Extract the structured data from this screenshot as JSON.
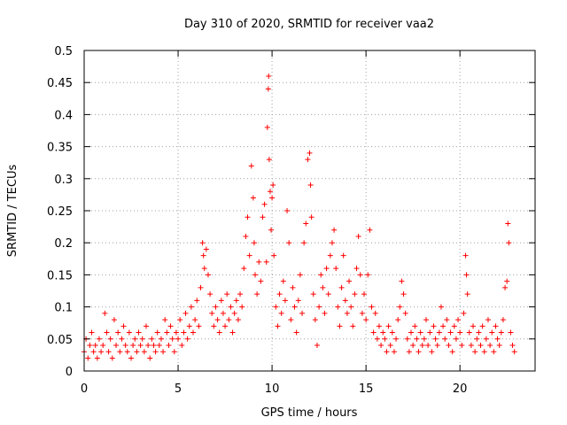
{
  "chart_data": {
    "type": "scatter",
    "title": "Day 310 of 2020, SRMTID for receiver vaa2",
    "xlabel": "GPS time / hours",
    "ylabel": "SRMTID / TECUs",
    "xlim": [
      0,
      24
    ],
    "ylim": [
      0,
      0.5
    ],
    "grid": true,
    "marker": "+",
    "color": "#ff0000",
    "x_ticks": [
      0,
      5,
      10,
      15,
      20
    ],
    "x_tick_labels": [
      "0",
      "5",
      "10",
      "15",
      "20"
    ],
    "y_ticks": [
      0,
      0.05,
      0.1,
      0.15,
      0.2,
      0.25,
      0.3,
      0.35,
      0.4,
      0.45,
      0.5
    ],
    "y_tick_labels": [
      "0",
      "0.05",
      "0.1",
      "0.15",
      "0.2",
      "0.25",
      "0.3",
      "0.35",
      "0.4",
      "0.45",
      "0.5"
    ],
    "series": [
      {
        "name": "SRMTID",
        "points": [
          [
            0.0,
            0.03
          ],
          [
            0.1,
            0.05
          ],
          [
            0.2,
            0.02
          ],
          [
            0.3,
            0.04
          ],
          [
            0.4,
            0.06
          ],
          [
            0.5,
            0.03
          ],
          [
            0.6,
            0.04
          ],
          [
            0.7,
            0.02
          ],
          [
            0.8,
            0.05
          ],
          [
            0.9,
            0.03
          ],
          [
            1.0,
            0.04
          ],
          [
            1.1,
            0.09
          ],
          [
            1.2,
            0.06
          ],
          [
            1.3,
            0.03
          ],
          [
            1.4,
            0.05
          ],
          [
            1.5,
            0.02
          ],
          [
            1.6,
            0.08
          ],
          [
            1.7,
            0.04
          ],
          [
            1.8,
            0.06
          ],
          [
            1.9,
            0.03
          ],
          [
            2.0,
            0.05
          ],
          [
            2.1,
            0.07
          ],
          [
            2.2,
            0.04
          ],
          [
            2.3,
            0.03
          ],
          [
            2.4,
            0.06
          ],
          [
            2.5,
            0.02
          ],
          [
            2.6,
            0.04
          ],
          [
            2.7,
            0.05
          ],
          [
            2.8,
            0.03
          ],
          [
            2.9,
            0.06
          ],
          [
            3.0,
            0.04
          ],
          [
            3.1,
            0.05
          ],
          [
            3.2,
            0.03
          ],
          [
            3.3,
            0.07
          ],
          [
            3.4,
            0.04
          ],
          [
            3.5,
            0.02
          ],
          [
            3.6,
            0.05
          ],
          [
            3.7,
            0.04
          ],
          [
            3.8,
            0.03
          ],
          [
            3.9,
            0.06
          ],
          [
            4.0,
            0.04
          ],
          [
            4.1,
            0.05
          ],
          [
            4.2,
            0.03
          ],
          [
            4.3,
            0.08
          ],
          [
            4.4,
            0.06
          ],
          [
            4.5,
            0.04
          ],
          [
            4.6,
            0.07
          ],
          [
            4.7,
            0.05
          ],
          [
            4.8,
            0.03
          ],
          [
            4.9,
            0.06
          ],
          [
            5.0,
            0.05
          ],
          [
            5.1,
            0.08
          ],
          [
            5.2,
            0.04
          ],
          [
            5.3,
            0.06
          ],
          [
            5.4,
            0.09
          ],
          [
            5.5,
            0.05
          ],
          [
            5.6,
            0.07
          ],
          [
            5.7,
            0.1
          ],
          [
            5.8,
            0.06
          ],
          [
            5.9,
            0.08
          ],
          [
            6.0,
            0.11
          ],
          [
            6.1,
            0.07
          ],
          [
            6.2,
            0.13
          ],
          [
            6.3,
            0.2
          ],
          [
            6.35,
            0.18
          ],
          [
            6.4,
            0.16
          ],
          [
            6.5,
            0.19
          ],
          [
            6.6,
            0.15
          ],
          [
            6.7,
            0.12
          ],
          [
            6.8,
            0.09
          ],
          [
            6.9,
            0.07
          ],
          [
            7.0,
            0.1
          ],
          [
            7.1,
            0.08
          ],
          [
            7.2,
            0.06
          ],
          [
            7.3,
            0.11
          ],
          [
            7.4,
            0.09
          ],
          [
            7.5,
            0.07
          ],
          [
            7.6,
            0.12
          ],
          [
            7.7,
            0.08
          ],
          [
            7.8,
            0.1
          ],
          [
            7.9,
            0.06
          ],
          [
            8.0,
            0.09
          ],
          [
            8.1,
            0.11
          ],
          [
            8.2,
            0.08
          ],
          [
            8.3,
            0.12
          ],
          [
            8.4,
            0.1
          ],
          [
            8.5,
            0.16
          ],
          [
            8.6,
            0.21
          ],
          [
            8.7,
            0.24
          ],
          [
            8.8,
            0.18
          ],
          [
            8.9,
            0.32
          ],
          [
            9.0,
            0.27
          ],
          [
            9.05,
            0.2
          ],
          [
            9.1,
            0.15
          ],
          [
            9.2,
            0.12
          ],
          [
            9.3,
            0.17
          ],
          [
            9.4,
            0.14
          ],
          [
            9.5,
            0.24
          ],
          [
            9.6,
            0.26
          ],
          [
            9.7,
            0.17
          ],
          [
            9.75,
            0.38
          ],
          [
            9.8,
            0.44
          ],
          [
            9.82,
            0.46
          ],
          [
            9.85,
            0.33
          ],
          [
            9.9,
            0.28
          ],
          [
            9.95,
            0.22
          ],
          [
            10.0,
            0.27
          ],
          [
            10.05,
            0.29
          ],
          [
            10.1,
            0.18
          ],
          [
            10.2,
            0.1
          ],
          [
            10.3,
            0.07
          ],
          [
            10.4,
            0.12
          ],
          [
            10.5,
            0.09
          ],
          [
            10.6,
            0.14
          ],
          [
            10.7,
            0.11
          ],
          [
            10.8,
            0.25
          ],
          [
            10.9,
            0.2
          ],
          [
            11.0,
            0.08
          ],
          [
            11.1,
            0.13
          ],
          [
            11.2,
            0.1
          ],
          [
            11.3,
            0.06
          ],
          [
            11.4,
            0.11
          ],
          [
            11.5,
            0.15
          ],
          [
            11.6,
            0.09
          ],
          [
            11.7,
            0.2
          ],
          [
            11.8,
            0.23
          ],
          [
            11.9,
            0.33
          ],
          [
            12.0,
            0.34
          ],
          [
            12.05,
            0.29
          ],
          [
            12.1,
            0.24
          ],
          [
            12.2,
            0.12
          ],
          [
            12.3,
            0.08
          ],
          [
            12.4,
            0.04
          ],
          [
            12.5,
            0.1
          ],
          [
            12.6,
            0.15
          ],
          [
            12.7,
            0.13
          ],
          [
            12.8,
            0.09
          ],
          [
            12.9,
            0.16
          ],
          [
            13.0,
            0.12
          ],
          [
            13.1,
            0.18
          ],
          [
            13.2,
            0.2
          ],
          [
            13.3,
            0.22
          ],
          [
            13.4,
            0.16
          ],
          [
            13.5,
            0.1
          ],
          [
            13.6,
            0.07
          ],
          [
            13.7,
            0.13
          ],
          [
            13.8,
            0.18
          ],
          [
            13.9,
            0.11
          ],
          [
            14.0,
            0.09
          ],
          [
            14.1,
            0.14
          ],
          [
            14.2,
            0.1
          ],
          [
            14.3,
            0.07
          ],
          [
            14.4,
            0.12
          ],
          [
            14.5,
            0.16
          ],
          [
            14.6,
            0.21
          ],
          [
            14.7,
            0.15
          ],
          [
            14.8,
            0.09
          ],
          [
            14.9,
            0.12
          ],
          [
            15.0,
            0.08
          ],
          [
            15.1,
            0.15
          ],
          [
            15.2,
            0.22
          ],
          [
            15.3,
            0.1
          ],
          [
            15.4,
            0.06
          ],
          [
            15.5,
            0.09
          ],
          [
            15.6,
            0.05
          ],
          [
            15.7,
            0.07
          ],
          [
            15.8,
            0.04
          ],
          [
            15.9,
            0.06
          ],
          [
            16.0,
            0.05
          ],
          [
            16.1,
            0.03
          ],
          [
            16.2,
            0.07
          ],
          [
            16.3,
            0.04
          ],
          [
            16.4,
            0.06
          ],
          [
            16.5,
            0.03
          ],
          [
            16.6,
            0.05
          ],
          [
            16.7,
            0.08
          ],
          [
            16.8,
            0.1
          ],
          [
            16.9,
            0.14
          ],
          [
            17.0,
            0.12
          ],
          [
            17.1,
            0.09
          ],
          [
            17.2,
            0.05
          ],
          [
            17.3,
            0.03
          ],
          [
            17.4,
            0.06
          ],
          [
            17.5,
            0.04
          ],
          [
            17.6,
            0.07
          ],
          [
            17.7,
            0.05
          ],
          [
            17.8,
            0.03
          ],
          [
            17.9,
            0.06
          ],
          [
            18.0,
            0.04
          ],
          [
            18.1,
            0.05
          ],
          [
            18.2,
            0.08
          ],
          [
            18.3,
            0.04
          ],
          [
            18.4,
            0.06
          ],
          [
            18.5,
            0.03
          ],
          [
            18.6,
            0.07
          ],
          [
            18.7,
            0.05
          ],
          [
            18.8,
            0.04
          ],
          [
            18.9,
            0.06
          ],
          [
            19.0,
            0.1
          ],
          [
            19.1,
            0.07
          ],
          [
            19.2,
            0.05
          ],
          [
            19.3,
            0.08
          ],
          [
            19.4,
            0.04
          ],
          [
            19.5,
            0.06
          ],
          [
            19.6,
            0.03
          ],
          [
            19.7,
            0.07
          ],
          [
            19.8,
            0.05
          ],
          [
            19.9,
            0.08
          ],
          [
            20.0,
            0.06
          ],
          [
            20.1,
            0.04
          ],
          [
            20.2,
            0.09
          ],
          [
            20.3,
            0.18
          ],
          [
            20.35,
            0.15
          ],
          [
            20.4,
            0.12
          ],
          [
            20.5,
            0.06
          ],
          [
            20.6,
            0.04
          ],
          [
            20.7,
            0.07
          ],
          [
            20.8,
            0.03
          ],
          [
            20.9,
            0.05
          ],
          [
            21.0,
            0.06
          ],
          [
            21.1,
            0.04
          ],
          [
            21.2,
            0.07
          ],
          [
            21.3,
            0.03
          ],
          [
            21.4,
            0.05
          ],
          [
            21.5,
            0.08
          ],
          [
            21.6,
            0.04
          ],
          [
            21.7,
            0.06
          ],
          [
            21.8,
            0.03
          ],
          [
            21.9,
            0.07
          ],
          [
            22.0,
            0.05
          ],
          [
            22.1,
            0.04
          ],
          [
            22.2,
            0.06
          ],
          [
            22.3,
            0.08
          ],
          [
            22.4,
            0.13
          ],
          [
            22.5,
            0.14
          ],
          [
            22.55,
            0.23
          ],
          [
            22.6,
            0.2
          ],
          [
            22.7,
            0.06
          ],
          [
            22.8,
            0.04
          ],
          [
            22.9,
            0.03
          ]
        ]
      }
    ]
  }
}
